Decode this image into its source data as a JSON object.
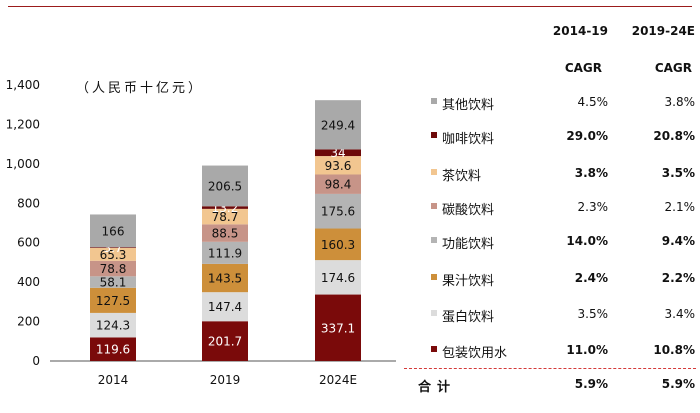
{
  "chart_data": {
    "type": "bar",
    "stacked": true,
    "unit_label": "（人民币十亿元）",
    "categories": [
      "2014",
      "2019",
      "2024E"
    ],
    "ylim": [
      0,
      1400
    ],
    "yticks": [
      "0",
      "200",
      "400",
      "600",
      "800",
      "1,000",
      "1,200",
      "1,400"
    ],
    "grid": false,
    "series": [
      {
        "name": "包装饮用水",
        "color": "#7a0a0a",
        "label_color": "#ffffff",
        "values": [
          119.6,
          201.7,
          337.1
        ]
      },
      {
        "name": "蛋白饮料",
        "color": "#dcdcdc",
        "label_color": "#111111",
        "values": [
          124.3,
          147.4,
          174.6
        ]
      },
      {
        "name": "果汁饮料",
        "color": "#cd8f3a",
        "label_color": "#111111",
        "values": [
          127.5,
          143.5,
          160.3
        ]
      },
      {
        "name": "功能饮料",
        "color": "#b4b4b4",
        "label_color": "#111111",
        "values": [
          58.1,
          111.9,
          175.6
        ]
      },
      {
        "name": "碳酸饮料",
        "color": "#c79488",
        "label_color": "#111111",
        "values": [
          78.8,
          88.5,
          98.4
        ]
      },
      {
        "name": "茶饮料",
        "color": "#f2c690",
        "label_color": "#111111",
        "values": [
          65.3,
          78.7,
          93.6
        ]
      },
      {
        "name": "咖啡饮料",
        "color": "#6e0a0a",
        "label_color": "#ffffff",
        "values": [
          3.7,
          13.2,
          34.0
        ]
      },
      {
        "name": "其他饮料",
        "color": "#a9a9a9",
        "label_color": "#111111",
        "values": [
          166,
          206.5,
          249.4
        ]
      }
    ]
  },
  "table": {
    "col1_header_line1": "2014-19",
    "col1_header_line2": "CAGR",
    "col2_header_line1": "2019-24E",
    "col2_header_line2": "CAGR",
    "rows": [
      {
        "name": "其他饮料",
        "color": "#a9a9a9",
        "v1": "4.5%",
        "v2": "3.8%",
        "bold": false
      },
      {
        "name": "咖啡饮料",
        "color": "#6e0a0a",
        "v1": "29.0%",
        "v2": "20.8%",
        "bold": true
      },
      {
        "name": "茶饮料",
        "color": "#f2c690",
        "v1": "3.8%",
        "v2": "3.5%",
        "bold": true
      },
      {
        "name": "碳酸饮料",
        "color": "#c79488",
        "v1": "2.3%",
        "v2": "2.1%",
        "bold": false
      },
      {
        "name": "功能饮料",
        "color": "#b4b4b4",
        "v1": "14.0%",
        "v2": "9.4%",
        "bold": true
      },
      {
        "name": "果汁饮料",
        "color": "#cd8f3a",
        "v1": "2.4%",
        "v2": "2.2%",
        "bold": true
      },
      {
        "name": "蛋白饮料",
        "color": "#dcdcdc",
        "v1": "3.5%",
        "v2": "3.4%",
        "bold": false
      },
      {
        "name": "包装饮用水",
        "color": "#7a0a0a",
        "v1": "11.0%",
        "v2": "10.8%",
        "bold": true
      }
    ],
    "total": {
      "name": "合计",
      "v1": "5.9%",
      "v2": "5.9%"
    }
  }
}
